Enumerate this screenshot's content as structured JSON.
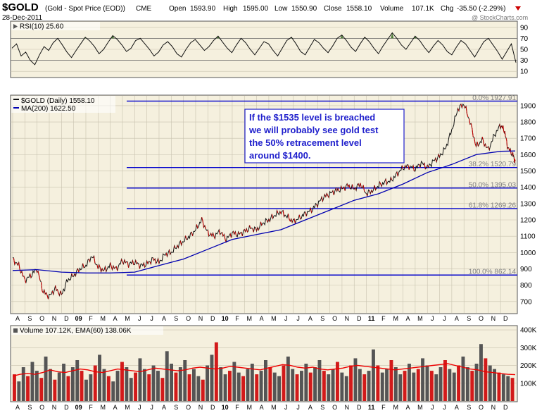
{
  "header": {
    "symbol": "$GOLD",
    "description": "(Gold - Spot Price (EOD))",
    "exchange": "CME",
    "date": "28-Dec-2011",
    "open_label": "Open",
    "open_value": "1593.90",
    "high_label": "High",
    "high_value": "1595.00",
    "low_label": "Low",
    "low_value": "1550.90",
    "close_label": "Close",
    "close_value": "1558.10",
    "volume_label": "Volume",
    "volume_value": "107.1K",
    "chg_label": "Chg",
    "chg_value": "-35.50 (-2.29%)",
    "watermark": "@ StockCharts.com"
  },
  "colors": {
    "panel_bg": "#f5f0de",
    "grid": "#c8c2ae",
    "price": "#111111",
    "price_down": "#cc0000",
    "ma": "#0000b0",
    "fib": "#0000cc",
    "volume_bar": "#555555",
    "volume_red": "#d21a1a",
    "ema": "#ee0000",
    "rsi_fill": "#4b7a36",
    "annotation": "#1f1fcc"
  },
  "chart_data": [
    {
      "type": "line",
      "panel": "rsi",
      "title": "RSI(10) 25.60",
      "indicator": "RSI(10)",
      "last_value": 25.6,
      "ylim": [
        0,
        100
      ],
      "yticks": [
        10,
        30,
        50,
        70,
        90
      ],
      "reference_lines": [
        30,
        70
      ],
      "values": [
        52,
        60,
        38,
        45,
        30,
        22,
        40,
        55,
        48,
        62,
        70,
        58,
        45,
        35,
        48,
        60,
        72,
        65,
        55,
        42,
        50,
        63,
        75,
        68,
        58,
        46,
        52,
        66,
        70,
        60,
        50,
        38,
        45,
        58,
        64,
        55,
        42,
        36,
        50,
        62,
        68,
        58,
        48,
        55,
        66,
        74,
        63,
        52,
        44,
        58,
        70,
        62,
        50,
        40,
        52,
        64,
        60,
        48,
        38,
        52,
        66,
        72,
        60,
        46,
        40,
        54,
        68,
        62,
        52,
        44,
        56,
        70,
        76,
        66,
        54,
        46,
        60,
        72,
        64,
        52,
        42,
        56,
        68,
        80,
        70,
        58,
        50,
        62,
        74,
        66,
        54,
        44,
        56,
        66,
        58,
        46,
        40,
        54,
        66,
        60,
        48,
        36,
        50,
        64,
        70,
        58,
        46,
        32,
        46,
        60,
        26
      ]
    },
    {
      "type": "line",
      "panel": "price",
      "title": "$GOLD (Daily) 1558.10",
      "series_labels": [
        "$GOLD (Daily) 1558.10",
        "MA(200) 1622.50"
      ],
      "x_labels": [
        "A",
        "S",
        "O",
        "N",
        "D",
        "09",
        "F",
        "M",
        "A",
        "M",
        "J",
        "J",
        "A",
        "S",
        "O",
        "N",
        "D",
        "10",
        "F",
        "M",
        "A",
        "M",
        "J",
        "J",
        "A",
        "S",
        "O",
        "N",
        "D",
        "11",
        "F",
        "M",
        "A",
        "M",
        "J",
        "J",
        "A",
        "S",
        "O",
        "N",
        "D"
      ],
      "ylim": [
        630,
        1960
      ],
      "yticks": [
        700,
        800,
        900,
        1000,
        1100,
        1200,
        1300,
        1400,
        1500,
        1600,
        1700,
        1800,
        1900
      ],
      "series": [
        {
          "name": "$GOLD",
          "values": [
            [
              0,
              960
            ],
            [
              0.5,
              920
            ],
            [
              1,
              830
            ],
            [
              1.5,
              860
            ],
            [
              2,
              900
            ],
            [
              2.5,
              760
            ],
            [
              3,
              730
            ],
            [
              3.5,
              780
            ],
            [
              4,
              740
            ],
            [
              4.5,
              830
            ],
            [
              5,
              860
            ],
            [
              5.5,
              900
            ],
            [
              6,
              920
            ],
            [
              6.5,
              980
            ],
            [
              7,
              910
            ],
            [
              7.5,
              890
            ],
            [
              8,
              920
            ],
            [
              8.5,
              900
            ],
            [
              9,
              950
            ],
            [
              9.5,
              930
            ],
            [
              10,
              940
            ],
            [
              10.5,
              920
            ],
            [
              11,
              930
            ],
            [
              11.5,
              960
            ],
            [
              12,
              940
            ],
            [
              12.5,
              990
            ],
            [
              13,
              1000
            ],
            [
              13.5,
              1040
            ],
            [
              14,
              1070
            ],
            [
              14.5,
              1100
            ],
            [
              15,
              1140
            ],
            [
              15.5,
              1200
            ],
            [
              16,
              1120
            ],
            [
              16.5,
              1100
            ],
            [
              17,
              1130
            ],
            [
              17.5,
              1080
            ],
            [
              18,
              1120
            ],
            [
              18.5,
              1110
            ],
            [
              19,
              1130
            ],
            [
              19.5,
              1150
            ],
            [
              20,
              1140
            ],
            [
              20.5,
              1180
            ],
            [
              21,
              1200
            ],
            [
              21.5,
              1230
            ],
            [
              22,
              1250
            ],
            [
              22.5,
              1220
            ],
            [
              23,
              1190
            ],
            [
              23.5,
              1210
            ],
            [
              24,
              1240
            ],
            [
              24.5,
              1260
            ],
            [
              25,
              1300
            ],
            [
              25.5,
              1340
            ],
            [
              26,
              1360
            ],
            [
              26.5,
              1380
            ],
            [
              27,
              1390
            ],
            [
              27.5,
              1410
            ],
            [
              28,
              1390
            ],
            [
              28.5,
              1420
            ],
            [
              29,
              1360
            ],
            [
              29.5,
              1380
            ],
            [
              30,
              1410
            ],
            [
              30.5,
              1430
            ],
            [
              31,
              1440
            ],
            [
              31.5,
              1480
            ],
            [
              32,
              1520
            ],
            [
              32.5,
              1530
            ],
            [
              33,
              1510
            ],
            [
              33.5,
              1550
            ],
            [
              34,
              1520
            ],
            [
              34.5,
              1560
            ],
            [
              35,
              1590
            ],
            [
              35.5,
              1640
            ],
            [
              36,
              1750
            ],
            [
              36.5,
              1880
            ],
            [
              37,
              1910
            ],
            [
              37.5,
              1800
            ],
            [
              38,
              1650
            ],
            [
              38.5,
              1690
            ],
            [
              39,
              1630
            ],
            [
              39.5,
              1720
            ],
            [
              40,
              1780
            ],
            [
              40.3,
              1750
            ],
            [
              40.6,
              1640
            ],
            [
              41,
              1600
            ],
            [
              41.2,
              1558
            ]
          ]
        },
        {
          "name": "MA(200)",
          "values": [
            [
              0,
              890
            ],
            [
              2,
              895
            ],
            [
              4,
              880
            ],
            [
              6,
              875
            ],
            [
              8,
              875
            ],
            [
              10,
              880
            ],
            [
              12,
              920
            ],
            [
              14,
              960
            ],
            [
              16,
              1020
            ],
            [
              18,
              1080
            ],
            [
              20,
              1110
            ],
            [
              22,
              1140
            ],
            [
              24,
              1200
            ],
            [
              26,
              1260
            ],
            [
              28,
              1320
            ],
            [
              30,
              1360
            ],
            [
              32,
              1420
            ],
            [
              34,
              1490
            ],
            [
              36,
              1540
            ],
            [
              38,
              1600
            ],
            [
              40,
              1620
            ],
            [
              41.2,
              1622.5
            ]
          ]
        }
      ],
      "fib_levels": [
        {
          "label": "0.0%",
          "value": 1927.91,
          "text": "1927.91"
        },
        {
          "label": "38.2%",
          "value": 1520.79,
          "text": "1520.79"
        },
        {
          "label": "50.0%",
          "value": 1395.03,
          "text": "1395.03"
        },
        {
          "label": "61.8%",
          "value": 1269.26,
          "text": "1269.26"
        },
        {
          "label": "100.0%",
          "value": 862.14,
          "text": "862.14"
        }
      ],
      "annotation": [
        "If the $1535 level is breached",
        "we will probably see gold test",
        "the 50% retracement level",
        "around $1400."
      ]
    },
    {
      "type": "bar",
      "panel": "volume",
      "title": "Volume 107.12K, EMA(60) 138.06K",
      "ylim": [
        0,
        420000
      ],
      "yticks_labels": [
        "100K",
        "200K",
        "300K",
        "400K"
      ],
      "yticks": [
        100000,
        200000,
        300000,
        400000
      ],
      "values": [
        150,
        110,
        190,
        140,
        220,
        170,
        130,
        250,
        180,
        120,
        160,
        210,
        140,
        190,
        230,
        170,
        120,
        150,
        200,
        260,
        180,
        140,
        110,
        170,
        220,
        190,
        130,
        160,
        240,
        180,
        150,
        200,
        170,
        130,
        280,
        210,
        160,
        190,
        230,
        150,
        180,
        140,
        120,
        200,
        260,
        330,
        190,
        150,
        170,
        220,
        160,
        140,
        180,
        210,
        150,
        170,
        230,
        190,
        160,
        140,
        200,
        250,
        180,
        150,
        170,
        210,
        160,
        190,
        230,
        170,
        150,
        180,
        220,
        160,
        140,
        200,
        240,
        180,
        150,
        170,
        290,
        200,
        160,
        180,
        230,
        190,
        150,
        170,
        210,
        160,
        180,
        240,
        200,
        170,
        150,
        190,
        230,
        180,
        160,
        200,
        250,
        190,
        170,
        210,
        320,
        240,
        200,
        180,
        160,
        150,
        140,
        130
      ],
      "ema": [
        140,
        150,
        155,
        150,
        160,
        175,
        165,
        160,
        170,
        180,
        175,
        165,
        160,
        170,
        180,
        175,
        170,
        165,
        175,
        185,
        180,
        175,
        170,
        175,
        185,
        190,
        185,
        180,
        185,
        195,
        190,
        185,
        180,
        175,
        185,
        195,
        205,
        200,
        190,
        185,
        190,
        180,
        175,
        180,
        185,
        195,
        200,
        195,
        190,
        185,
        180,
        175,
        180,
        185,
        190,
        195,
        200,
        205,
        210,
        200,
        190,
        180,
        175,
        165,
        160,
        155,
        150,
        148
      ]
    }
  ]
}
